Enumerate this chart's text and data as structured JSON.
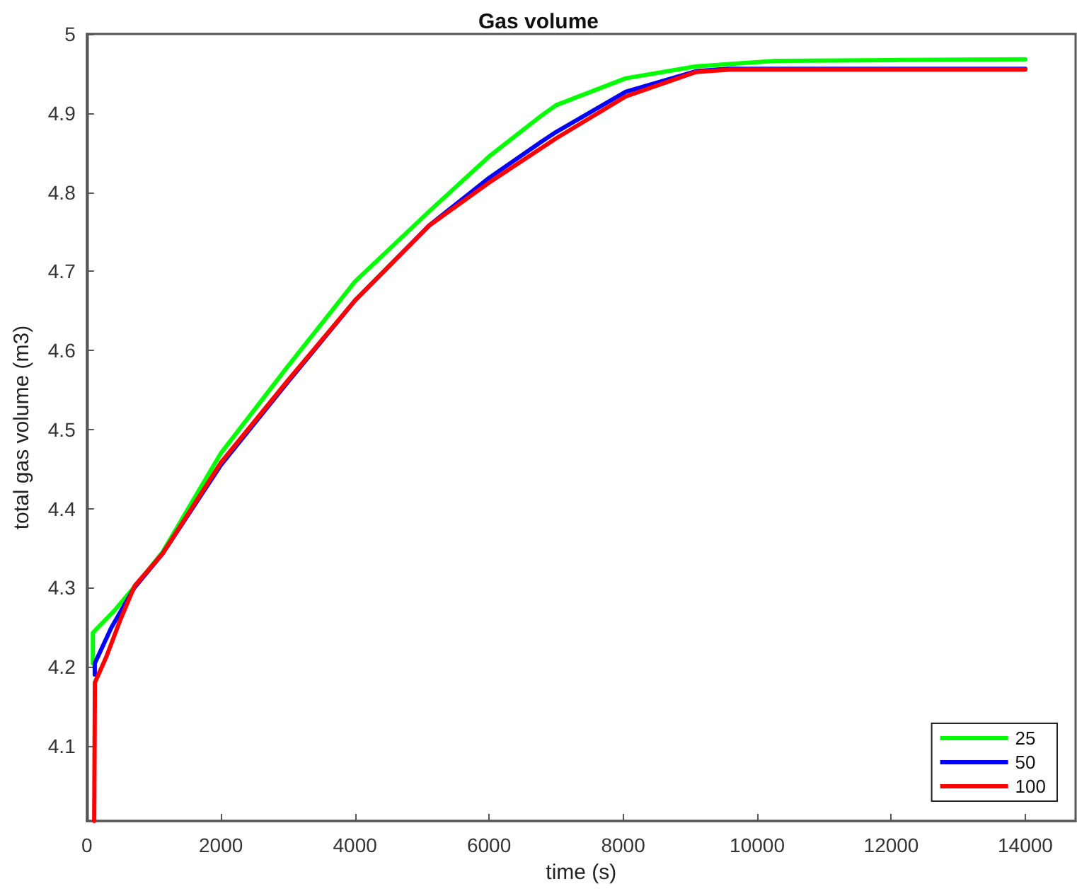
{
  "chart_data": {
    "type": "line",
    "title": "Gas volume",
    "xlabel": "time (s)",
    "ylabel": "total gas volume (m3)",
    "xlim": [
      0,
      14750
    ],
    "xticks": [
      0,
      2000,
      4000,
      6000,
      8000,
      10000,
      12000,
      14000
    ],
    "ylim": [
      4.005,
      5
    ],
    "yticks": [
      4.1,
      4.2,
      4.3,
      4.4,
      4.5,
      4.6,
      4.7,
      4.8,
      4.9,
      5
    ],
    "grid": false,
    "legend": "bottom right",
    "marker": "none",
    "line_style": "solid",
    "series": [
      {
        "name": "25",
        "color": "#00ff00",
        "x": [
          90,
          90,
          400,
          800,
          1130,
          2000,
          3000,
          4000,
          5110,
          6000,
          6785,
          7000,
          8040,
          9090,
          10280,
          12000,
          14000
        ],
        "values": [
          4.204,
          4.243,
          4.27,
          4.31,
          4.345,
          4.47,
          4.58,
          4.687,
          4.776,
          4.845,
          4.897,
          4.91,
          4.944,
          4.959,
          4.966,
          4.967,
          4.968
        ]
      },
      {
        "name": "50",
        "color": "#0000ff",
        "x": [
          118,
          118,
          363,
          710,
          1130,
          2000,
          3000,
          4000,
          5110,
          6000,
          6785,
          7000,
          8040,
          9090,
          9570,
          12000,
          14000
        ],
        "values": [
          4.19,
          4.204,
          4.249,
          4.3,
          4.343,
          4.455,
          4.56,
          4.663,
          4.758,
          4.818,
          4.864,
          4.876,
          4.927,
          4.953,
          4.956,
          4.956,
          4.956
        ]
      },
      {
        "name": "100",
        "color": "#ff0000",
        "x": [
          110,
          120,
          293,
          503,
          712,
          1130,
          2000,
          3000,
          4000,
          5110,
          6000,
          6785,
          7000,
          8040,
          9090,
          9600,
          12000,
          14000
        ],
        "values": [
          4.005,
          4.18,
          4.213,
          4.26,
          4.302,
          4.343,
          4.458,
          4.562,
          4.663,
          4.758,
          4.812,
          4.856,
          4.868,
          4.921,
          4.952,
          4.955,
          4.955,
          4.955
        ]
      }
    ]
  }
}
